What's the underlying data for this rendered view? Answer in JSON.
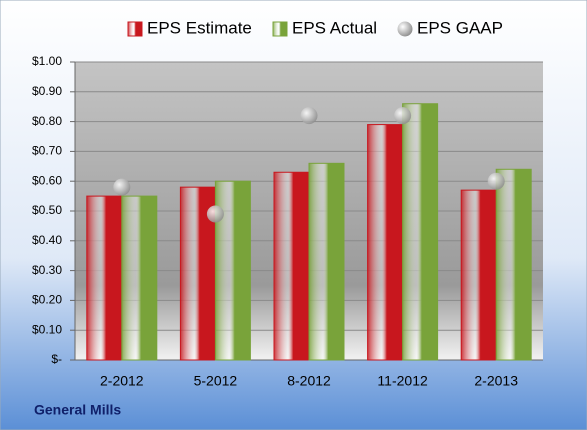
{
  "chart_data": {
    "type": "bar",
    "categories": [
      "2-2012",
      "5-2012",
      "8-2012",
      "11-2012",
      "2-2013"
    ],
    "series": [
      {
        "name": "EPS Estimate",
        "color": "#c8171e",
        "values": [
          0.55,
          0.58,
          0.63,
          0.79,
          0.57
        ]
      },
      {
        "name": "EPS Actual",
        "color": "#79a33a",
        "values": [
          0.55,
          0.6,
          0.66,
          0.86,
          0.64
        ]
      },
      {
        "name": "EPS GAAP",
        "color": "#a6a6a6",
        "type": "scatter",
        "values": [
          0.58,
          0.49,
          0.82,
          0.82,
          0.6
        ]
      }
    ],
    "ylim": [
      0,
      1
    ],
    "yticks": [
      {
        "value": 0,
        "label": "$-"
      },
      {
        "value": 0.1,
        "label": "$0.10"
      },
      {
        "value": 0.2,
        "label": "$0.20"
      },
      {
        "value": 0.3,
        "label": "$0.30"
      },
      {
        "value": 0.4,
        "label": "$0.40"
      },
      {
        "value": 0.5,
        "label": "$0.50"
      },
      {
        "value": 0.6,
        "label": "$0.60"
      },
      {
        "value": 0.7,
        "label": "$0.70"
      },
      {
        "value": 0.8,
        "label": "$0.80"
      },
      {
        "value": 0.9,
        "label": "$0.90"
      },
      {
        "value": 1,
        "label": "$1.00"
      }
    ],
    "grid": true,
    "legend": "top",
    "footer": "General Mills"
  }
}
